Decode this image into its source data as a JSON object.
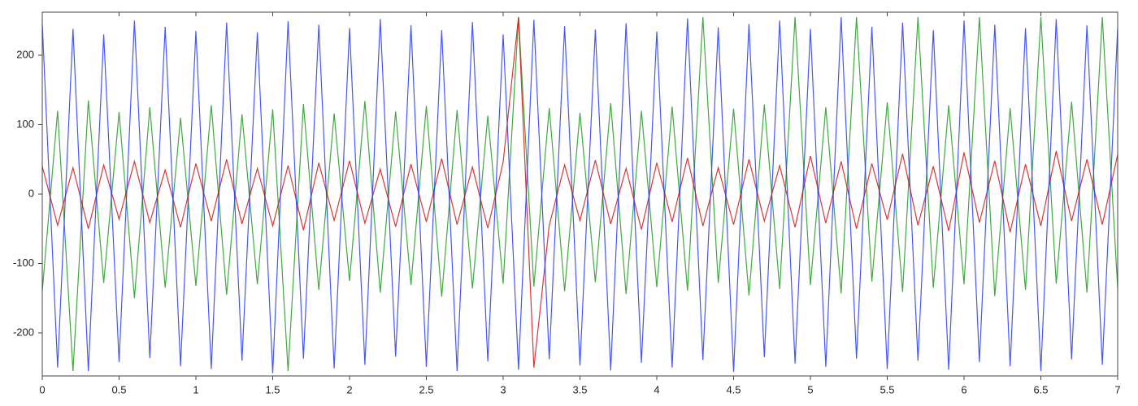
{
  "chart_data": {
    "type": "line",
    "x": [
      0,
      0.1,
      0.2,
      0.3,
      0.4,
      0.5,
      0.6,
      0.7,
      0.8,
      0.9,
      1,
      1.1,
      1.2,
      1.3,
      1.4,
      1.5,
      1.6,
      1.7,
      1.8,
      1.9,
      2,
      2.1,
      2.2,
      2.3,
      2.4,
      2.5,
      2.6,
      2.7,
      2.8,
      2.9,
      3,
      3.1,
      3.2,
      3.3,
      3.4,
      3.5,
      3.6,
      3.7,
      3.8,
      3.9,
      4,
      4.1,
      4.2,
      4.3,
      4.4,
      4.5,
      4.6,
      4.7,
      4.8,
      4.9,
      5,
      5.1,
      5.2,
      5.3,
      5.4,
      5.5,
      5.6,
      5.7,
      5.8,
      5.9,
      6,
      6.1,
      6.2,
      6.3,
      6.4,
      6.5,
      6.6,
      6.7,
      6.8,
      6.9,
      7
    ],
    "series": [
      {
        "color": "#1f9a1f",
        "values": [
          -140,
          120,
          -255,
          135,
          -128,
          118,
          -150,
          125,
          -135,
          110,
          -132,
          128,
          -145,
          115,
          -130,
          122,
          -255,
          130,
          -138,
          116,
          -125,
          134,
          -142,
          119,
          -131,
          127,
          -148,
          121,
          -136,
          113,
          -129,
          255,
          -133,
          124,
          -140,
          117,
          -127,
          131,
          -144,
          120,
          -134,
          126,
          -139,
          255,
          -128,
          123,
          -146,
          129,
          -137,
          255,
          -131,
          125,
          -143,
          255,
          -126,
          132,
          -141,
          255,
          -135,
          128,
          -130,
          255,
          -147,
          124,
          -138,
          255,
          -129,
          133,
          -142,
          255,
          -136
        ]
      },
      {
        "color": "#d41414",
        "values": [
          40,
          -45,
          38,
          -50,
          42,
          -36,
          47,
          -41,
          35,
          -48,
          44,
          -39,
          50,
          -43,
          37,
          -46,
          41,
          -52,
          45,
          -38,
          48,
          -42,
          36,
          -47,
          43,
          -40,
          51,
          -44,
          39,
          -49,
          46,
          255,
          -250,
          -45,
          42,
          -38,
          49,
          -43,
          37,
          -51,
          45,
          -40,
          52,
          -46,
          38,
          -44,
          50,
          -39,
          41,
          -48,
          55,
          -42,
          47,
          -50,
          44,
          -37,
          58,
          -45,
          40,
          -53,
          60,
          -41,
          48,
          -55,
          43,
          -46,
          62,
          -39,
          50,
          -44,
          57
        ]
      },
      {
        "color": "#2438ff",
        "values": [
          245,
          -250,
          238,
          -255,
          230,
          -242,
          250,
          -236,
          241,
          -248,
          235,
          -252,
          247,
          -240,
          233,
          -258,
          249,
          -237,
          244,
          -251,
          239,
          -246,
          252,
          -234,
          243,
          -249,
          236,
          -255,
          248,
          -241,
          230,
          -253,
          251,
          -238,
          242,
          -247,
          237,
          -254,
          246,
          -243,
          234,
          -250,
          253,
          -239,
          240,
          -256,
          245,
          -235,
          250,
          -244,
          238,
          -249,
          255,
          -237,
          241,
          -252,
          247,
          -240,
          236,
          -253,
          250,
          -242,
          244,
          -248,
          239,
          -255,
          252,
          -238,
          243,
          -246,
          240
        ]
      }
    ],
    "xlim": [
      0,
      7
    ],
    "xticks": [
      0,
      0.5,
      1,
      1.5,
      2,
      2.5,
      3,
      3.5,
      4,
      4.5,
      5,
      5.5,
      6,
      6.5,
      7
    ],
    "ylim": [
      -262,
      262
    ],
    "yticks": [
      -200,
      -100,
      0,
      100,
      200
    ]
  }
}
